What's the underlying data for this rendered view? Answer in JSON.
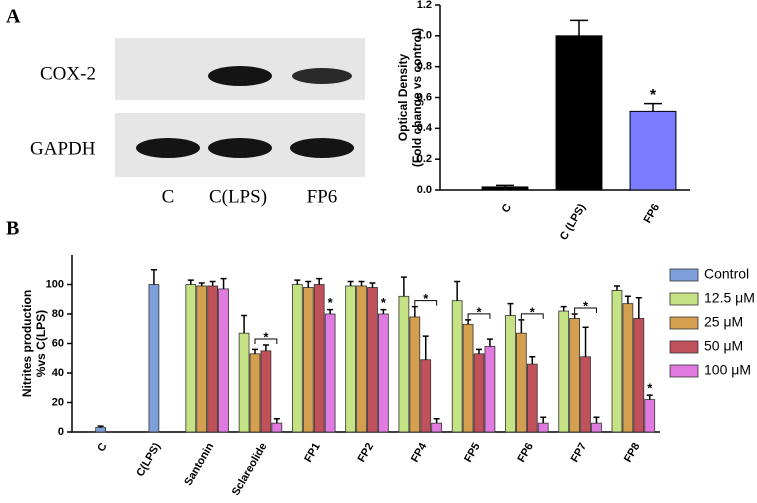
{
  "figure": {
    "panel_a": "A",
    "panel_b": "B"
  },
  "blot": {
    "rows": [
      "COX-2",
      "GAPDH"
    ],
    "lanes": [
      "C",
      "C(LPS)",
      "FP6"
    ]
  },
  "chart_data": [
    {
      "type": "bar",
      "ylabel": [
        "Optical Density",
        "(Fold change vs control)"
      ],
      "categories": [
        "C",
        "C (LPS)",
        "FP6"
      ],
      "values": [
        0.02,
        1.0,
        0.51
      ],
      "errors": [
        0.01,
        0.1,
        0.05
      ],
      "colors": [
        "#000000",
        "#000000",
        "#7b7bff"
      ],
      "significance": [
        null,
        null,
        "*"
      ],
      "ylim": [
        0,
        1.2
      ],
      "yticks": [
        {
          "value": 0,
          "label": "0.0"
        },
        0.2,
        0.4,
        0.6,
        0.8,
        {
          "value": 1,
          "label": "1.0"
        },
        1.2
      ]
    },
    {
      "type": "grouped_bar",
      "ylabel": [
        "Nitrites production",
        "%vs C(LPS)"
      ],
      "categories": [
        "C",
        "C(LPS)",
        "Santonin",
        "Sclareolide",
        "FP1",
        "FP2",
        "FP4",
        "FP5",
        "FP6",
        "FP7",
        "FP8"
      ],
      "series": [
        {
          "name": "Control",
          "color": "#7f9fdb",
          "values": [
            3,
            100,
            null,
            null,
            null,
            null,
            null,
            null,
            null,
            null,
            null
          ],
          "errors": [
            1,
            10,
            null,
            null,
            null,
            null,
            null,
            null,
            null,
            null,
            null
          ]
        },
        {
          "name": "12.5 μM",
          "color": "#c5e384",
          "values": [
            null,
            null,
            100,
            67,
            100,
            99,
            92,
            89,
            79,
            82,
            96
          ],
          "errors": [
            null,
            null,
            3,
            12,
            3,
            3,
            13,
            13,
            8,
            3,
            3
          ]
        },
        {
          "name": "25 μM",
          "color": "#d4a050",
          "values": [
            null,
            null,
            99,
            53,
            98,
            99,
            78,
            73,
            67,
            77,
            87
          ],
          "errors": [
            null,
            null,
            2,
            3,
            4,
            3,
            7,
            3,
            9,
            3,
            5
          ]
        },
        {
          "name": "50 μM",
          "color": "#c0505a",
          "values": [
            null,
            null,
            99,
            55,
            100,
            98,
            49,
            53,
            46,
            51,
            77
          ],
          "errors": [
            null,
            null,
            3,
            4,
            4,
            3,
            16,
            3,
            5,
            20,
            14
          ]
        },
        {
          "name": "100 μM",
          "color": "#e07ae0",
          "values": [
            null,
            null,
            97,
            6,
            80,
            80,
            6,
            58,
            6,
            6,
            22
          ],
          "errors": [
            null,
            null,
            7,
            3,
            3,
            3,
            3,
            5,
            4,
            4,
            3
          ]
        }
      ],
      "significance": [
        null,
        null,
        null,
        "*",
        "*",
        "*",
        "*",
        "*",
        "*",
        "*",
        "*"
      ],
      "brackets": [
        false,
        false,
        false,
        true,
        false,
        false,
        true,
        true,
        true,
        true,
        false
      ],
      "ylim": [
        0,
        120
      ],
      "yticks": [
        0,
        20,
        40,
        60,
        80,
        100
      ]
    }
  ]
}
